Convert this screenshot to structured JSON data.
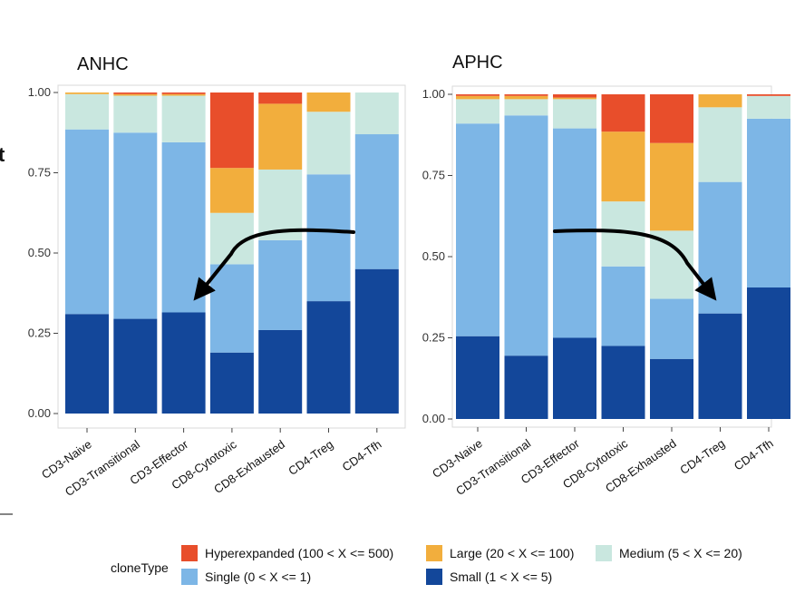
{
  "chart_data": [
    {
      "type": "bar",
      "stacked": true,
      "title": "ANHC",
      "ylim": [
        0,
        1
      ],
      "yticks": [
        "0.00",
        "0.25",
        "0.50",
        "0.75",
        "1.00"
      ],
      "categories": [
        "CD3-Naive",
        "CD3-Transitional",
        "CD3-Effector",
        "CD8-Cytotoxic",
        "CD8-Exhausted",
        "CD4-Treg",
        "CD4-Tfh"
      ],
      "series": [
        {
          "name": "Small (1 < X <= 5)",
          "color": "#13479a",
          "values": [
            0.31,
            0.295,
            0.315,
            0.19,
            0.26,
            0.35,
            0.45
          ]
        },
        {
          "name": "Single (0 < X <= 1)",
          "color": "#7db6e6",
          "values": [
            0.575,
            0.58,
            0.53,
            0.275,
            0.28,
            0.395,
            0.42
          ]
        },
        {
          "name": "Medium (5 < X <= 20)",
          "color": "#c9e7df",
          "values": [
            0.11,
            0.115,
            0.145,
            0.16,
            0.22,
            0.195,
            0.13
          ]
        },
        {
          "name": "Large (20 < X <= 100)",
          "color": "#f2ae3d",
          "values": [
            0.005,
            0.005,
            0.005,
            0.14,
            0.205,
            0.06,
            0
          ]
        },
        {
          "name": "Hyperexpanded (100 < X <= 500)",
          "color": "#e84e2b",
          "values": [
            0,
            0.005,
            0.005,
            0.235,
            0.035,
            0,
            0
          ]
        }
      ],
      "arrow": "from CD4-Tfh to CD3-Effector"
    },
    {
      "type": "bar",
      "stacked": true,
      "title": "APHC",
      "ylim": [
        0,
        1
      ],
      "yticks": [
        "0.00",
        "0.25",
        "0.50",
        "0.75",
        "1.00"
      ],
      "categories": [
        "CD3-Naive",
        "CD3-Transitional",
        "CD3-Effector",
        "CD8-Cytotoxic",
        "CD8-Exhausted",
        "CD4-Treg",
        "CD4-Tfh"
      ],
      "series": [
        {
          "name": "Small (1 < X <= 5)",
          "color": "#13479a",
          "values": [
            0.255,
            0.195,
            0.25,
            0.225,
            0.185,
            0.325,
            0.405
          ]
        },
        {
          "name": "Single (0 < X <= 1)",
          "color": "#7db6e6",
          "values": [
            0.655,
            0.74,
            0.645,
            0.245,
            0.185,
            0.405,
            0.52
          ]
        },
        {
          "name": "Medium (5 < X <= 20)",
          "color": "#c9e7df",
          "values": [
            0.075,
            0.05,
            0.09,
            0.2,
            0.21,
            0.23,
            0.07
          ]
        },
        {
          "name": "Large (20 < X <= 100)",
          "color": "#f2ae3d",
          "values": [
            0.01,
            0.01,
            0.005,
            0.215,
            0.27,
            0.04,
            0
          ]
        },
        {
          "name": "Hyperexpanded (100 < X <= 500)",
          "color": "#e84e2b",
          "values": [
            0.005,
            0.005,
            0.01,
            0.115,
            0.15,
            0,
            0.005
          ]
        }
      ],
      "arrow": "from CD3-Transitional to CD4-Treg"
    }
  ],
  "legend": {
    "title": "cloneType",
    "entries": [
      {
        "label": "Hyperexpanded (100 < X <= 500)",
        "color": "#e84e2b"
      },
      {
        "label": "Large (20 < X <= 100)",
        "color": "#f2ae3d"
      },
      {
        "label": "Medium (5 < X <= 20)",
        "color": "#c9e7df"
      },
      {
        "label": "Single (0 < X <= 1)",
        "color": "#7db6e6"
      },
      {
        "label": "Small (1 < X <= 5)",
        "color": "#13479a"
      }
    ]
  },
  "side_label": "t"
}
